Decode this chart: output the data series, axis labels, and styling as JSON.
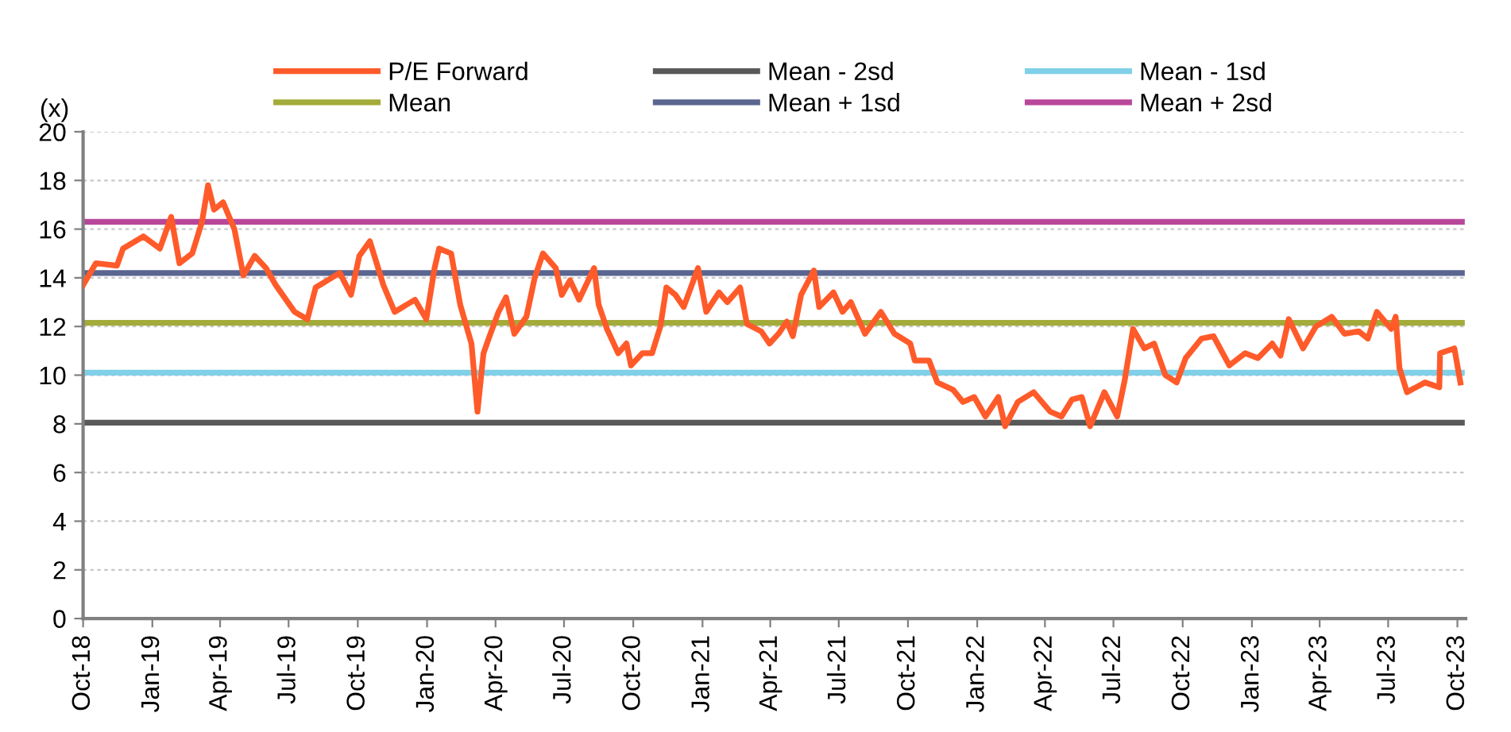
{
  "chart_data": {
    "type": "line",
    "ylabel": "(x)",
    "legend": "top",
    "grid": "y",
    "line_style": "solid",
    "marker": "none",
    "xlim": [
      "2018-10-01",
      "2023-10-12"
    ],
    "ylim": [
      0,
      20
    ],
    "yticks": [
      0,
      2,
      4,
      6,
      8,
      10,
      12,
      14,
      16,
      18,
      20
    ],
    "xticks": [
      {
        "value": "2018-10-01",
        "label": "Oct-18"
      },
      {
        "value": "2019-01-01",
        "label": "Jan-19"
      },
      {
        "value": "2019-04-01",
        "label": "Apr-19"
      },
      {
        "value": "2019-07-01",
        "label": "Jul-19"
      },
      {
        "value": "2019-10-01",
        "label": "Oct-19"
      },
      {
        "value": "2020-01-01",
        "label": "Jan-20"
      },
      {
        "value": "2020-04-01",
        "label": "Apr-20"
      },
      {
        "value": "2020-07-01",
        "label": "Jul-20"
      },
      {
        "value": "2020-10-01",
        "label": "Oct-20"
      },
      {
        "value": "2021-01-01",
        "label": "Jan-21"
      },
      {
        "value": "2021-04-01",
        "label": "Apr-21"
      },
      {
        "value": "2021-07-01",
        "label": "Jul-21"
      },
      {
        "value": "2021-10-01",
        "label": "Oct-21"
      },
      {
        "value": "2022-01-01",
        "label": "Jan-22"
      },
      {
        "value": "2022-04-01",
        "label": "Apr-22"
      },
      {
        "value": "2022-07-01",
        "label": "Jul-22"
      },
      {
        "value": "2022-10-01",
        "label": "Oct-22"
      },
      {
        "value": "2023-01-01",
        "label": "Jan-23"
      },
      {
        "value": "2023-04-01",
        "label": "Apr-23"
      },
      {
        "value": "2023-07-01",
        "label": "Jul-23"
      },
      {
        "value": "2023-10-01",
        "label": "Oct-23"
      }
    ],
    "series": [
      {
        "name": "P/E Forward",
        "color": "#ff5b2a",
        "x": [
          "2018-10-01",
          "2018-10-18",
          "2018-11-15",
          "2018-11-23",
          "2018-12-20",
          "2019-01-11",
          "2019-01-26",
          "2019-02-06",
          "2019-02-23",
          "2019-03-08",
          "2019-03-16",
          "2019-03-24",
          "2019-04-05",
          "2019-04-20",
          "2019-05-02",
          "2019-05-17",
          "2019-06-01",
          "2019-06-14",
          "2019-07-09",
          "2019-07-26",
          "2019-08-06",
          "2019-09-07",
          "2019-09-22",
          "2019-10-03",
          "2019-10-17",
          "2019-11-04",
          "2019-11-19",
          "2019-12-16",
          "2019-12-31",
          "2020-01-11",
          "2020-01-17",
          "2020-02-02",
          "2020-02-14",
          "2020-02-29",
          "2020-03-08",
          "2020-03-16",
          "2020-03-24",
          "2020-04-05",
          "2020-04-15",
          "2020-04-26",
          "2020-05-12",
          "2020-05-23",
          "2020-06-03",
          "2020-06-20",
          "2020-06-28",
          "2020-07-09",
          "2020-07-21",
          "2020-08-10",
          "2020-08-16",
          "2020-08-27",
          "2020-09-11",
          "2020-09-22",
          "2020-09-28",
          "2020-10-13",
          "2020-10-26",
          "2020-11-06",
          "2020-11-14",
          "2020-11-26",
          "2020-12-07",
          "2020-12-26",
          "2021-01-06",
          "2021-01-23",
          "2021-02-03",
          "2021-02-20",
          "2021-03-01",
          "2021-03-20",
          "2021-03-31",
          "2021-04-12",
          "2021-04-23",
          "2021-05-01",
          "2021-05-12",
          "2021-05-29",
          "2021-06-05",
          "2021-06-24",
          "2021-07-06",
          "2021-07-17",
          "2021-08-05",
          "2021-08-26",
          "2021-09-13",
          "2021-10-04",
          "2021-10-10",
          "2021-10-29",
          "2021-11-09",
          "2021-11-30",
          "2021-12-13",
          "2021-12-28",
          "2022-01-12",
          "2022-01-29",
          "2022-02-07",
          "2022-02-24",
          "2022-03-17",
          "2022-04-08",
          "2022-04-23",
          "2022-05-07",
          "2022-05-20",
          "2022-05-31",
          "2022-06-19",
          "2022-07-06",
          "2022-07-16",
          "2022-07-27",
          "2022-08-11",
          "2022-08-24",
          "2022-09-08",
          "2022-09-23",
          "2022-10-05",
          "2022-10-26",
          "2022-11-11",
          "2022-12-02",
          "2022-12-23",
          "2023-01-09",
          "2023-01-28",
          "2023-02-08",
          "2023-02-19",
          "2023-03-10",
          "2023-03-27",
          "2023-04-17",
          "2023-05-04",
          "2023-05-23",
          "2023-06-04",
          "2023-06-16",
          "2023-07-05",
          "2023-07-11",
          "2023-07-16",
          "2023-07-26",
          "2023-08-19",
          "2023-09-07",
          "2023-09-08",
          "2023-09-27",
          "2023-10-05"
        ],
        "values": [
          13.7,
          14.6,
          14.5,
          15.2,
          15.7,
          15.2,
          16.5,
          14.6,
          15.0,
          16.3,
          17.8,
          16.8,
          17.1,
          16.0,
          14.1,
          14.9,
          14.4,
          13.7,
          12.6,
          12.3,
          13.6,
          14.2,
          13.3,
          14.9,
          15.5,
          13.7,
          12.6,
          13.1,
          12.3,
          14.4,
          15.2,
          15.0,
          12.9,
          11.3,
          8.5,
          10.9,
          11.6,
          12.6,
          13.2,
          11.7,
          12.4,
          14.0,
          15.0,
          14.4,
          13.3,
          13.9,
          13.1,
          14.4,
          12.9,
          11.9,
          10.9,
          11.3,
          10.4,
          10.9,
          10.9,
          12.0,
          13.6,
          13.3,
          12.8,
          14.4,
          12.6,
          13.4,
          13.0,
          13.6,
          12.1,
          11.8,
          11.3,
          11.7,
          12.2,
          11.6,
          13.3,
          14.3,
          12.8,
          13.4,
          12.6,
          13.0,
          11.7,
          12.6,
          11.7,
          11.3,
          10.6,
          10.6,
          9.7,
          9.4,
          8.9,
          9.1,
          8.3,
          9.1,
          7.9,
          8.9,
          9.3,
          8.5,
          8.3,
          9.0,
          9.1,
          7.9,
          9.3,
          8.3,
          9.8,
          11.9,
          11.1,
          11.3,
          10.0,
          9.7,
          10.7,
          11.5,
          11.6,
          10.4,
          10.9,
          10.7,
          11.3,
          10.8,
          12.3,
          11.1,
          12.0,
          12.4,
          11.7,
          11.8,
          11.5,
          12.6,
          11.9,
          12.4,
          10.3,
          9.3,
          9.7,
          9.5,
          10.9,
          11.1,
          9.7
        ]
      },
      {
        "name": "Mean - 2sd",
        "color": "#595959",
        "x": [
          "2018-10-01",
          "2023-10-07"
        ],
        "values": [
          8.05,
          8.05
        ]
      },
      {
        "name": "Mean - 1sd",
        "color": "#80d0e8",
        "x": [
          "2018-10-01",
          "2023-10-07"
        ],
        "values": [
          10.1,
          10.1
        ]
      },
      {
        "name": "Mean",
        "color": "#a3ab3a",
        "x": [
          "2018-10-01",
          "2023-10-07"
        ],
        "values": [
          12.15,
          12.15
        ]
      },
      {
        "name": "Mean + 1sd",
        "color": "#5a6590",
        "x": [
          "2018-10-01",
          "2023-10-07"
        ],
        "values": [
          14.2,
          14.2
        ]
      },
      {
        "name": "Mean + 2sd",
        "color": "#b8479a",
        "x": [
          "2018-10-01",
          "2023-10-07"
        ],
        "values": [
          16.3,
          16.3
        ]
      }
    ]
  }
}
